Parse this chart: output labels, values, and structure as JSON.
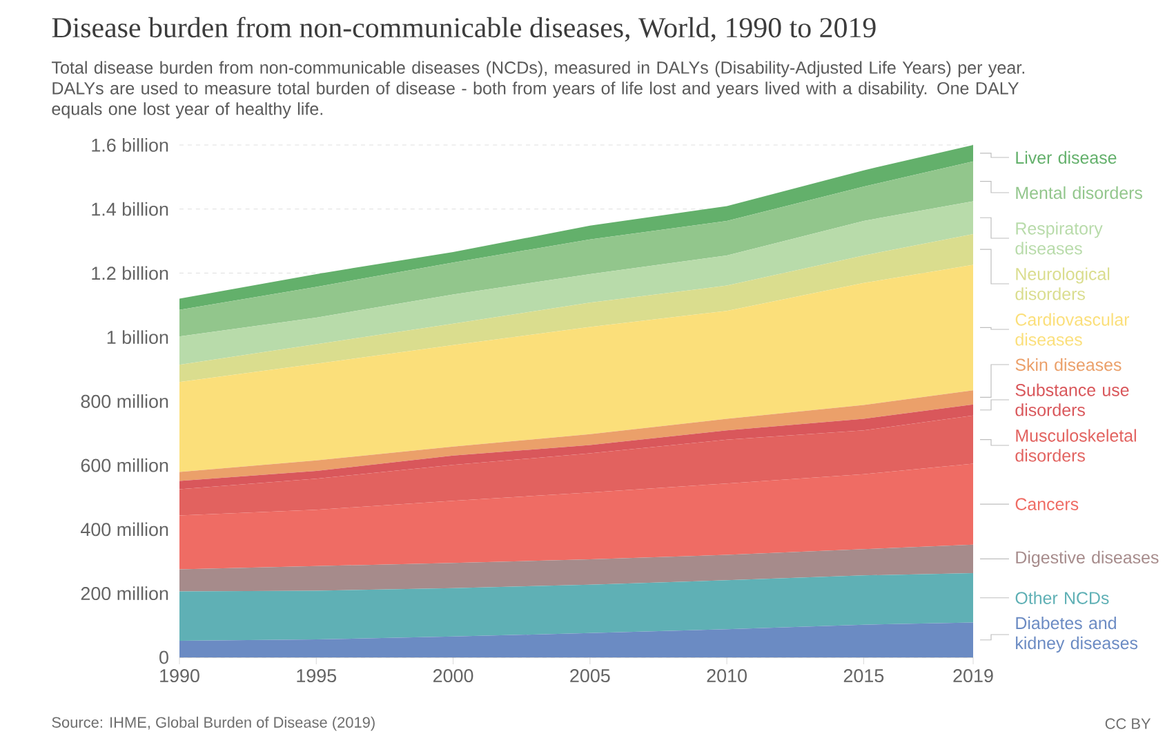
{
  "chart_data": {
    "type": "area",
    "stacked": true,
    "title": "Disease burden from non-communicable diseases, World, 1990 to 2019",
    "subtitle": "Total disease burden from non-communicable diseases (NCDs), measured in DALYs (Disability-Adjusted Life Years) per year. DALYs are used to measure total burden of disease - both from years of life lost and years lived with a disability. One DALY equals one lost year of healthy life.",
    "annotations": [
      "Source: IHME, Global Burden of Disease (2019)",
      "CC BY"
    ],
    "x": [
      1990,
      1995,
      2000,
      2005,
      2010,
      2015,
      2019
    ],
    "xlim": [
      1990,
      2019
    ],
    "xticks": [
      1990,
      1995,
      2000,
      2005,
      2010,
      2015,
      2019
    ],
    "ylim": [
      0,
      1600000000
    ],
    "yticks": [
      0,
      {
        "value": 200000000,
        "label": "200 million"
      },
      {
        "value": 400000000,
        "label": "400 million"
      },
      {
        "value": 600000000,
        "label": "600 million"
      },
      {
        "value": 800000000,
        "label": "800 million"
      },
      {
        "value": 1000000000,
        "label": "1 billion"
      },
      {
        "value": 1200000000,
        "label": "1.2 billion"
      },
      {
        "value": 1400000000,
        "label": "1.4 billion"
      },
      {
        "value": 1600000000,
        "label": "1.6 billion"
      }
    ],
    "grid": "y",
    "legend": "right",
    "series": [
      {
        "name": "Diabetes and kidney diseases",
        "color": "#6b8bc3",
        "values": [
          52000000,
          56000000,
          65000000,
          76000000,
          88000000,
          102000000,
          109000000
        ]
      },
      {
        "name": "Other NCDs",
        "color": "#5fb0b5",
        "values": [
          154000000,
          152000000,
          151000000,
          151000000,
          153000000,
          154000000,
          154000000
        ]
      },
      {
        "name": "Digestive diseases",
        "color": "#a68b8b",
        "values": [
          69000000,
          77000000,
          79000000,
          79000000,
          79000000,
          82000000,
          89000000
        ]
      },
      {
        "name": "Cancers",
        "color": "#ef6c64",
        "values": [
          168000000,
          176000000,
          194000000,
          209000000,
          223000000,
          234000000,
          253000000
        ]
      },
      {
        "name": "Musculoskeletal disorders",
        "color": "#e2625f",
        "values": [
          82000000,
          97000000,
          112000000,
          122000000,
          137000000,
          137000000,
          150000000
        ]
      },
      {
        "name": "Substance use disorders",
        "color": "#d9575b",
        "values": [
          26000000,
          24000000,
          29000000,
          26000000,
          29000000,
          36000000,
          35000000
        ]
      },
      {
        "name": "Skin diseases",
        "color": "#eba06a",
        "values": [
          28000000,
          33000000,
          28000000,
          34000000,
          36000000,
          43000000,
          44000000
        ]
      },
      {
        "name": "Cardiovascular diseases",
        "color": "#fbdf7a",
        "values": [
          281000000,
          302000000,
          317000000,
          335000000,
          337000000,
          381000000,
          392000000
        ]
      },
      {
        "name": "Neurological disorders",
        "color": "#dadd8e",
        "values": [
          54000000,
          61000000,
          67000000,
          76000000,
          79000000,
          86000000,
          96000000
        ]
      },
      {
        "name": "Respiratory diseases",
        "color": "#b8dbaa",
        "values": [
          88000000,
          83000000,
          91000000,
          89000000,
          94000000,
          108000000,
          102000000
        ]
      },
      {
        "name": "Mental disorders",
        "color": "#92c68c",
        "values": [
          83000000,
          96000000,
          100000000,
          108000000,
          108000000,
          107000000,
          125000000
        ]
      },
      {
        "name": "Liver disease",
        "color": "#63b06b",
        "values": [
          35000000,
          40000000,
          33000000,
          43000000,
          46000000,
          51000000,
          51000000
        ]
      }
    ]
  }
}
